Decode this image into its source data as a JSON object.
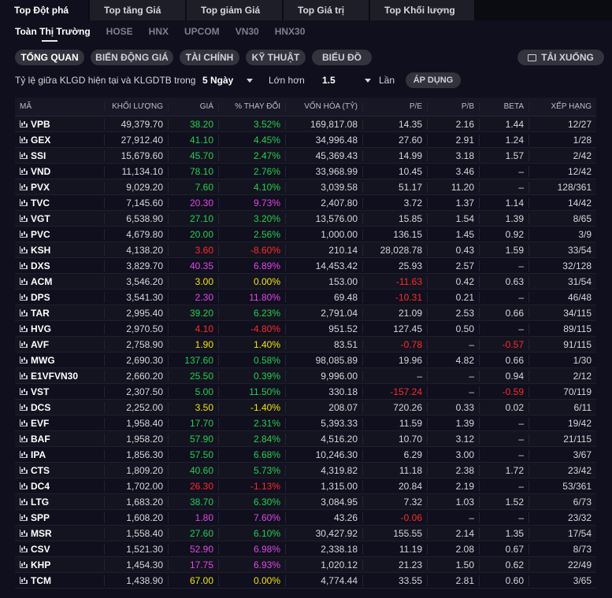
{
  "top_tabs": [
    "Top Đột phá",
    "Top tăng Giá",
    "Top giảm Giá",
    "Top Giá trị",
    "Top Khối lượng"
  ],
  "exchange_tabs": [
    "Toàn Thị Trường",
    "HOSE",
    "HNX",
    "UPCOM",
    "VN30",
    "HNX30"
  ],
  "view_tabs": [
    "TỔNG QUAN",
    "BIẾN ĐỘNG GIÁ",
    "TÀI CHÍNH",
    "KỸ THUẬT",
    "BIỂU ĐỒ"
  ],
  "download_label": "TẢI XUỐNG",
  "filter": {
    "label": "Tỷ lệ giữa KLGD hiện tại và KLGDTB trong",
    "period": "5 Ngày",
    "compare": "Lớn hơn",
    "ratio": "1.5",
    "unit": "Lần",
    "apply_label": "ÁP DỤNG"
  },
  "table": {
    "headers": [
      "MÃ",
      "KHỐI LƯỢNG",
      "GIÁ",
      "% THAY ĐỔI",
      "VỐN HÓA (TỶ)",
      "P/E",
      "P/B",
      "BETA",
      "XẾP HẠNG"
    ],
    "rows": [
      [
        "VPB",
        "49,379.70",
        "38.20",
        "3.52%",
        "169,817.08",
        "14.35",
        "2.16",
        "1.44",
        "12/27",
        "g",
        "g",
        "n"
      ],
      [
        "GEX",
        "27,912.40",
        "41.10",
        "4.45%",
        "34,996.48",
        "27.60",
        "2.91",
        "1.24",
        "1/28",
        "g",
        "g",
        "n"
      ],
      [
        "SSI",
        "15,679.60",
        "45.70",
        "2.47%",
        "45,369.43",
        "14.99",
        "3.18",
        "1.57",
        "2/42",
        "g",
        "g",
        "n"
      ],
      [
        "VND",
        "11,134.10",
        "78.10",
        "2.76%",
        "33,968.99",
        "10.45",
        "3.46",
        "–",
        "12/42",
        "g",
        "g",
        "n"
      ],
      [
        "PVX",
        "9,029.20",
        "7.60",
        "4.10%",
        "3,039.58",
        "51.17",
        "11.20",
        "–",
        "128/361",
        "g",
        "g",
        "n"
      ],
      [
        "TVC",
        "7,145.60",
        "20.30",
        "9.73%",
        "2,407.80",
        "3.72",
        "1.37",
        "1.14",
        "14/42",
        "m",
        "m",
        "n"
      ],
      [
        "VGT",
        "6,538.90",
        "27.10",
        "3.20%",
        "13,576.00",
        "15.85",
        "1.54",
        "1.39",
        "8/65",
        "g",
        "g",
        "n"
      ],
      [
        "PVC",
        "4,679.80",
        "20.00",
        "2.56%",
        "1,000.00",
        "136.15",
        "1.45",
        "0.92",
        "3/9",
        "g",
        "g",
        "n"
      ],
      [
        "KSH",
        "4,138.20",
        "3.60",
        "-8.60%",
        "210.14",
        "28,028.78",
        "0.43",
        "1.59",
        "33/54",
        "r",
        "r",
        "n"
      ],
      [
        "DXS",
        "3,829.70",
        "40.35",
        "6.89%",
        "14,453.42",
        "25.93",
        "2.57",
        "–",
        "32/128",
        "m",
        "m",
        "n"
      ],
      [
        "ACM",
        "3,546.20",
        "3.00",
        "0.00%",
        "153.00",
        "-11.63",
        "0.42",
        "0.63",
        "31/54",
        "y",
        "y",
        "r"
      ],
      [
        "DPS",
        "3,541.30",
        "2.30",
        "11.80%",
        "69.48",
        "-10.31",
        "0.21",
        "–",
        "46/48",
        "m",
        "m",
        "r"
      ],
      [
        "TAR",
        "2,995.40",
        "39.20",
        "6.23%",
        "2,791.04",
        "21.09",
        "2.53",
        "0.66",
        "34/115",
        "g",
        "g",
        "n"
      ],
      [
        "HVG",
        "2,970.50",
        "4.10",
        "-4.80%",
        "951.52",
        "127.45",
        "0.50",
        "–",
        "89/115",
        "r",
        "r",
        "n"
      ],
      [
        "AVF",
        "2,758.90",
        "1.90",
        "1.40%",
        "83.51",
        "-0.78",
        "–",
        "-0.57",
        "91/115",
        "y",
        "y",
        "r"
      ],
      [
        "MWG",
        "2,690.30",
        "137.60",
        "0.58%",
        "98,085.89",
        "19.96",
        "4.82",
        "0.66",
        "1/30",
        "g",
        "g",
        "n"
      ],
      [
        "E1VFVN30",
        "2,660.20",
        "25.50",
        "0.39%",
        "9,996.00",
        "–",
        "–",
        "0.94",
        "2/12",
        "g",
        "g",
        "n"
      ],
      [
        "VST",
        "2,307.50",
        "5.00",
        "11.50%",
        "330.18",
        "-157.24",
        "–",
        "-0.59",
        "70/119",
        "g",
        "g",
        "r"
      ],
      [
        "DCS",
        "2,252.00",
        "3.50",
        "-1.40%",
        "208.07",
        "720.26",
        "0.33",
        "0.02",
        "6/11",
        "y",
        "y",
        "n"
      ],
      [
        "EVF",
        "1,958.40",
        "17.70",
        "2.31%",
        "5,393.33",
        "11.59",
        "1.39",
        "–",
        "19/42",
        "g",
        "g",
        "n"
      ],
      [
        "BAF",
        "1,958.20",
        "57.90",
        "2.84%",
        "4,516.20",
        "10.70",
        "3.12",
        "–",
        "21/115",
        "g",
        "g",
        "n"
      ],
      [
        "IPA",
        "1,856.30",
        "57.50",
        "6.68%",
        "10,246.30",
        "6.29",
        "3.00",
        "–",
        "3/67",
        "g",
        "g",
        "n"
      ],
      [
        "CTS",
        "1,809.20",
        "40.60",
        "5.73%",
        "4,319.82",
        "11.18",
        "2.38",
        "1.72",
        "23/42",
        "g",
        "g",
        "n"
      ],
      [
        "DC4",
        "1,702.00",
        "26.30",
        "-1.13%",
        "1,315.00",
        "20.84",
        "2.19",
        "–",
        "53/361",
        "r",
        "r",
        "n"
      ],
      [
        "LTG",
        "1,683.20",
        "38.70",
        "6.30%",
        "3,084.95",
        "7.32",
        "1.03",
        "1.52",
        "6/73",
        "g",
        "g",
        "n"
      ],
      [
        "SPP",
        "1,608.20",
        "1.80",
        "7.60%",
        "43.26",
        "-0.06",
        "–",
        "–",
        "23/32",
        "m",
        "m",
        "r"
      ],
      [
        "MSR",
        "1,558.40",
        "27.60",
        "6.10%",
        "30,427.92",
        "155.55",
        "2.14",
        "1.35",
        "17/54",
        "g",
        "g",
        "n"
      ],
      [
        "CSV",
        "1,521.30",
        "52.90",
        "6.98%",
        "2,338.18",
        "11.19",
        "2.08",
        "0.67",
        "8/73",
        "m",
        "m",
        "n"
      ],
      [
        "KHP",
        "1,454.30",
        "17.75",
        "6.93%",
        "1,020.12",
        "21.23",
        "1.50",
        "0.62",
        "22/49",
        "m",
        "m",
        "n"
      ],
      [
        "TCM",
        "1,438.90",
        "67.00",
        "0.00%",
        "4,774.44",
        "33.55",
        "2.81",
        "0.60",
        "3/65",
        "y",
        "y",
        "n"
      ]
    ]
  },
  "colors": {
    "g": "#20d050",
    "r": "#ff2a2a",
    "m": "#e246e6",
    "y": "#f2e600",
    "n": "#d6d6dc"
  }
}
